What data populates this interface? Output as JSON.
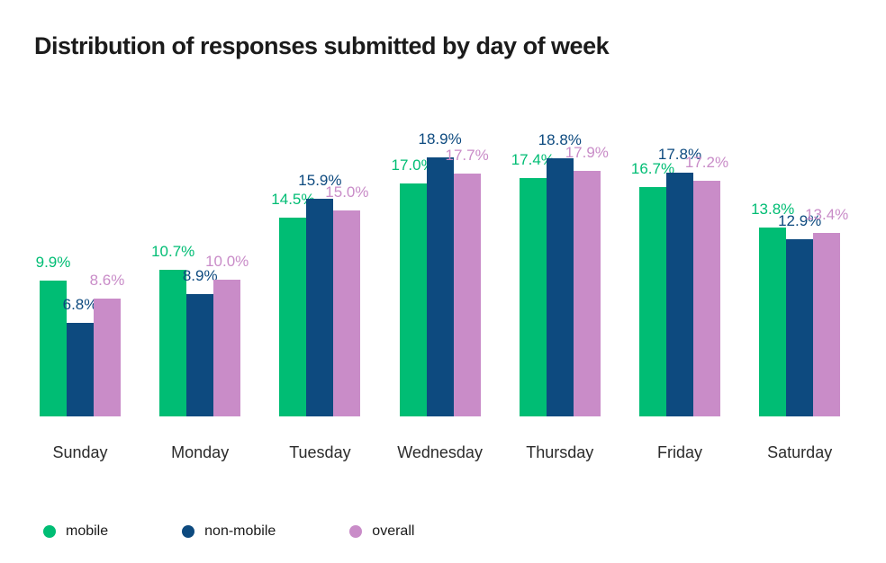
{
  "page": {
    "background_color": "#ffffff"
  },
  "chart_data": {
    "type": "bar",
    "title": "Distribution of responses submitted by day of week",
    "categories": [
      "Sunday",
      "Monday",
      "Tuesday",
      "Wednesday",
      "Thursday",
      "Friday",
      "Saturday"
    ],
    "series": [
      {
        "name": "mobile",
        "color": "#00bd74",
        "values": [
          9.9,
          10.7,
          14.5,
          17.0,
          17.4,
          16.7,
          13.8
        ]
      },
      {
        "name": "non-mobile",
        "color": "#0d4a7f",
        "values": [
          6.8,
          8.9,
          15.9,
          18.9,
          18.8,
          17.8,
          12.9
        ]
      },
      {
        "name": "overall",
        "color": "#c98cc8",
        "values": [
          8.6,
          10.0,
          15.0,
          17.7,
          17.9,
          17.2,
          13.4
        ]
      }
    ],
    "value_label_suffix": "%",
    "value_label_decimals": 1,
    "value_labels_position": "outside-top",
    "xlabel": "",
    "ylabel": "",
    "ylim": [
      0,
      20
    ],
    "grid": false,
    "y_axis_visible": false,
    "legend_position": "bottom-left",
    "title_color": "#1b1b1b",
    "axis_text_color": "#2b2b2b"
  }
}
